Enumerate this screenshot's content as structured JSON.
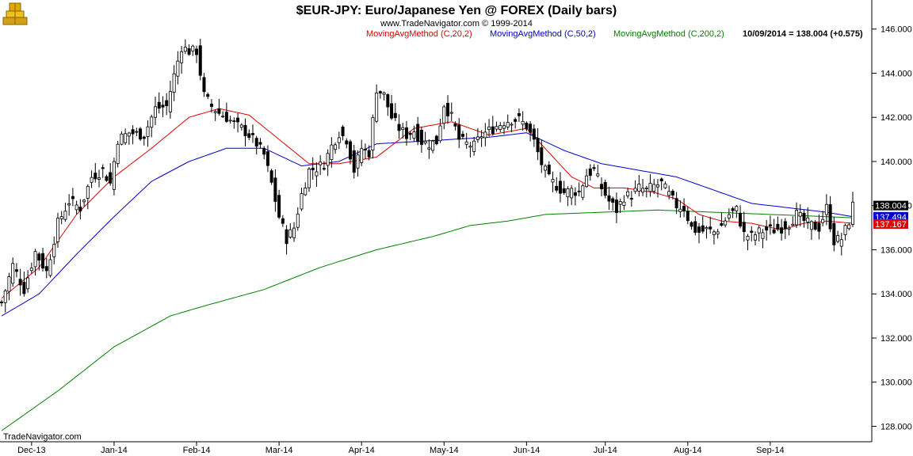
{
  "header": {
    "title": "$EUR-JPY:  Euro/Japanese Yen @ FOREX  (Daily bars)",
    "subtitle": "www.TradeNavigator.com © 1999-2014",
    "legend": [
      {
        "text": "MovingAvgMethod (C,20,2)",
        "color": "#e00000"
      },
      {
        "text": "MovingAvgMethod (C,50,2)",
        "color": "#0000d0"
      },
      {
        "text": "MovingAvgMethod (C,200,2)",
        "color": "#008000"
      },
      {
        "text": "10/09/2014 = 138.004 (+0.575)",
        "color": "#000000"
      }
    ]
  },
  "brand": "TradeNavigator.com",
  "logo_icon": "trade-navigator-logo-icon",
  "chart_data": {
    "type": "candlestick",
    "title": "$EUR-JPY:  Euro/Japanese Yen @ FOREX  (Daily bars)",
    "x_labels": [
      "Dec-13",
      "Jan-14",
      "Feb-14",
      "Mar-14",
      "Apr-14",
      "May-14",
      "Jun-14",
      "Jul-14",
      "Aug-14",
      "Sep-14"
    ],
    "ylim": [
      127.3,
      146.6
    ],
    "y_ticks": [
      "128.000",
      "130.000",
      "132.000",
      "134.000",
      "136.000",
      "138.000",
      "140.000",
      "142.000",
      "144.000",
      "146.000"
    ],
    "y_tick_values": [
      128,
      130,
      132,
      134,
      136,
      138,
      140,
      142,
      144,
      146
    ],
    "price_anchors": [
      [
        0,
        133.6
      ],
      [
        3,
        135.3
      ],
      [
        6,
        134.2
      ],
      [
        9,
        135.9
      ],
      [
        12,
        135.0
      ],
      [
        15,
        137.2
      ],
      [
        18,
        138.2
      ],
      [
        21,
        137.9
      ],
      [
        24,
        139.3
      ],
      [
        27,
        139.6
      ],
      [
        29,
        139.0
      ],
      [
        31,
        141.0
      ],
      [
        34,
        141.3
      ],
      [
        38,
        141.2
      ],
      [
        41,
        142.4
      ],
      [
        44,
        142.5
      ],
      [
        46,
        143.9
      ],
      [
        48,
        145.2
      ],
      [
        50,
        145.0
      ],
      [
        52,
        145.0
      ],
      [
        54,
        143.0
      ],
      [
        56,
        142.5
      ],
      [
        58,
        142.2
      ],
      [
        60,
        142.0
      ],
      [
        62,
        141.7
      ],
      [
        64,
        141.5
      ],
      [
        66,
        141.2
      ],
      [
        68,
        140.8
      ],
      [
        70,
        140.3
      ],
      [
        72,
        139.0
      ],
      [
        74,
        137.5
      ],
      [
        76,
        136.5
      ],
      [
        78,
        137.0
      ],
      [
        80,
        138.5
      ],
      [
        82,
        139.6
      ],
      [
        84,
        139.7
      ],
      [
        86,
        139.9
      ],
      [
        88,
        140.7
      ],
      [
        90,
        141.3
      ],
      [
        92,
        141.0
      ],
      [
        94,
        139.6
      ],
      [
        96,
        140.6
      ],
      [
        98,
        140.4
      ],
      [
        100,
        143.3
      ],
      [
        102,
        143.0
      ],
      [
        104,
        142.0
      ],
      [
        106,
        141.5
      ],
      [
        108,
        141.2
      ],
      [
        110,
        141.4
      ],
      [
        112,
        140.9
      ],
      [
        114,
        140.8
      ],
      [
        116,
        140.9
      ],
      [
        118,
        142.6
      ],
      [
        120,
        142.0
      ],
      [
        122,
        141.0
      ],
      [
        124,
        140.8
      ],
      [
        126,
        140.7
      ],
      [
        128,
        141.2
      ],
      [
        130,
        141.4
      ],
      [
        132,
        141.6
      ],
      [
        134,
        141.8
      ],
      [
        136,
        141.9
      ],
      [
        138,
        141.9
      ],
      [
        140,
        141.6
      ],
      [
        142,
        140.9
      ],
      [
        144,
        139.9
      ],
      [
        146,
        139.2
      ],
      [
        148,
        138.9
      ],
      [
        150,
        138.6
      ],
      [
        152,
        138.7
      ],
      [
        154,
        138.6
      ],
      [
        156,
        139.4
      ],
      [
        158,
        139.6
      ],
      [
        160,
        138.8
      ],
      [
        162,
        138.2
      ],
      [
        164,
        137.8
      ],
      [
        166,
        138.4
      ],
      [
        168,
        138.5
      ],
      [
        170,
        138.8
      ],
      [
        172,
        138.7
      ],
      [
        174,
        138.9
      ],
      [
        176,
        139.0
      ],
      [
        178,
        138.5
      ],
      [
        180,
        138.0
      ],
      [
        182,
        137.9
      ],
      [
        184,
        137.0
      ],
      [
        186,
        136.8
      ],
      [
        188,
        136.9
      ],
      [
        190,
        136.8
      ],
      [
        192,
        137.1
      ],
      [
        194,
        137.6
      ],
      [
        196,
        137.8
      ],
      [
        198,
        136.7
      ],
      [
        200,
        136.6
      ],
      [
        202,
        136.8
      ],
      [
        204,
        136.9
      ],
      [
        206,
        136.9
      ],
      [
        208,
        137.0
      ],
      [
        210,
        137.2
      ],
      [
        212,
        137.6
      ],
      [
        214,
        137.3
      ],
      [
        216,
        137.1
      ],
      [
        218,
        137.0
      ],
      [
        220,
        137.9
      ],
      [
        222,
        136.4
      ],
      [
        224,
        136.5
      ],
      [
        226,
        137.3
      ],
      [
        227,
        138.0
      ]
    ],
    "ma20_anchors": [
      [
        0,
        133.8
      ],
      [
        10,
        135.2
      ],
      [
        20,
        137.6
      ],
      [
        30,
        139.3
      ],
      [
        40,
        140.6
      ],
      [
        50,
        142.0
      ],
      [
        58,
        142.4
      ],
      [
        66,
        142.1
      ],
      [
        74,
        141.0
      ],
      [
        82,
        139.9
      ],
      [
        90,
        139.9
      ],
      [
        100,
        140.2
      ],
      [
        110,
        141.5
      ],
      [
        120,
        141.8
      ],
      [
        130,
        141.2
      ],
      [
        140,
        141.5
      ],
      [
        146,
        140.4
      ],
      [
        152,
        139.3
      ],
      [
        158,
        138.8
      ],
      [
        166,
        138.8
      ],
      [
        174,
        138.6
      ],
      [
        180,
        138.3
      ],
      [
        186,
        137.6
      ],
      [
        192,
        137.3
      ],
      [
        200,
        137.2
      ],
      [
        208,
        136.9
      ],
      [
        214,
        137.2
      ],
      [
        220,
        137.3
      ],
      [
        227,
        137.2
      ]
    ],
    "ma50_anchors": [
      [
        0,
        133.0
      ],
      [
        10,
        134.0
      ],
      [
        20,
        135.8
      ],
      [
        30,
        137.5
      ],
      [
        40,
        139.1
      ],
      [
        50,
        140.0
      ],
      [
        60,
        140.6
      ],
      [
        70,
        140.6
      ],
      [
        80,
        139.8
      ],
      [
        90,
        140.0
      ],
      [
        100,
        140.8
      ],
      [
        110,
        140.9
      ],
      [
        120,
        141.0
      ],
      [
        130,
        141.1
      ],
      [
        140,
        141.3
      ],
      [
        150,
        140.5
      ],
      [
        160,
        139.9
      ],
      [
        170,
        139.6
      ],
      [
        180,
        139.3
      ],
      [
        190,
        138.7
      ],
      [
        200,
        138.1
      ],
      [
        210,
        137.9
      ],
      [
        220,
        137.7
      ],
      [
        227,
        137.5
      ]
    ],
    "ma200_anchors": [
      [
        0,
        127.8
      ],
      [
        15,
        129.6
      ],
      [
        30,
        131.6
      ],
      [
        45,
        133.0
      ],
      [
        55,
        133.5
      ],
      [
        70,
        134.2
      ],
      [
        85,
        135.2
      ],
      [
        100,
        136.0
      ],
      [
        115,
        136.6
      ],
      [
        125,
        137.1
      ],
      [
        135,
        137.3
      ],
      [
        145,
        137.6
      ],
      [
        160,
        137.7
      ],
      [
        175,
        137.8
      ],
      [
        190,
        137.7
      ],
      [
        205,
        137.6
      ],
      [
        220,
        137.5
      ],
      [
        227,
        137.45
      ]
    ],
    "series": [
      {
        "name": "MovingAvgMethod (C,20,2)",
        "color": "#e00000",
        "last": "137.167"
      },
      {
        "name": "MovingAvgMethod (C,50,2)",
        "color": "#0000d0",
        "last": "137.494"
      },
      {
        "name": "MovingAvgMethod (C,200,2)",
        "color": "#008000"
      }
    ],
    "last_close": "138.004",
    "grid": false,
    "legend_position": "top-center"
  }
}
